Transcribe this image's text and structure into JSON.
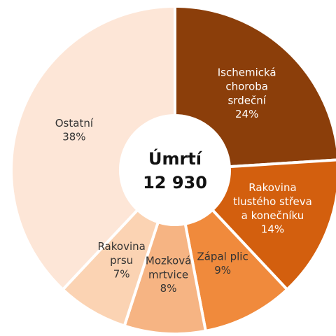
{
  "chart_data": {
    "type": "donut",
    "center_title": "Úmrtí",
    "center_total": {
      "value": 12930,
      "label": "12 930"
    },
    "categories": [
      "Ischemická\nchoroba\nsrdeční",
      "Rakovina\ntlustého střeva\na konečníku",
      "Zápal plic",
      "Mozková\nmrtvice",
      "Rakovina\nprsu",
      "Ostatní"
    ],
    "values": [
      24,
      14,
      9,
      8,
      7,
      38
    ],
    "value_labels": [
      "24%",
      "14%",
      "9%",
      "8%",
      "7%",
      "38%"
    ],
    "colors": [
      "#8b3e0a",
      "#d35f0e",
      "#f08a3c",
      "#f6b483",
      "#fbd3b3",
      "#fde6d7"
    ]
  }
}
